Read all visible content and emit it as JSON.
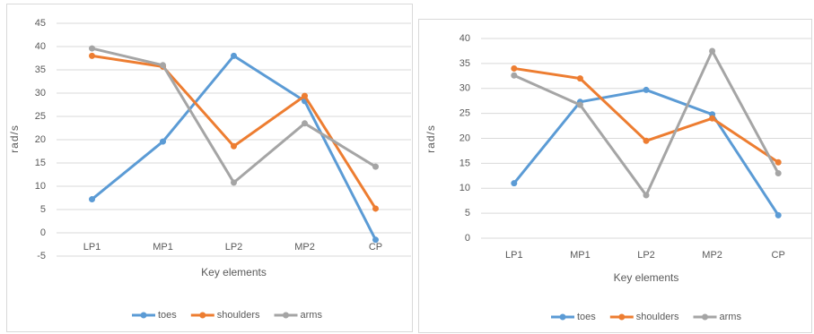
{
  "chart_data": [
    {
      "type": "line",
      "x_label": "Key elements",
      "y_label": "rad/s",
      "categories": [
        "LP1",
        "MP1",
        "LP2",
        "MP2",
        "CP"
      ],
      "series": [
        {
          "name": "toes",
          "color": "#5b9bd5",
          "values": [
            7.2,
            19.6,
            38,
            28.3,
            -1.5
          ]
        },
        {
          "name": "shoulders",
          "color": "#ed7d31",
          "values": [
            38,
            35.7,
            18.6,
            29.4,
            5.2
          ]
        },
        {
          "name": "arms",
          "color": "#a5a5a5",
          "values": [
            39.6,
            36,
            10.8,
            23.5,
            14.2
          ]
        }
      ],
      "ylim": [
        -5,
        45
      ],
      "yticks": [
        -5,
        0,
        5,
        10,
        15,
        20,
        25,
        30,
        35,
        40,
        45
      ],
      "grid": true,
      "legend": "bottom"
    },
    {
      "type": "line",
      "x_label": "Key elements",
      "y_label": "rad/s",
      "categories": [
        "LP1",
        "MP1",
        "LP2",
        "MP2",
        "CP"
      ],
      "series": [
        {
          "name": "toes",
          "color": "#5b9bd5",
          "values": [
            11,
            27.3,
            29.7,
            24.8,
            4.6
          ]
        },
        {
          "name": "shoulders",
          "color": "#ed7d31",
          "values": [
            34,
            32,
            19.5,
            24,
            15.2
          ]
        },
        {
          "name": "arms",
          "color": "#a5a5a5",
          "values": [
            32.6,
            26.7,
            8.6,
            37.5,
            13
          ]
        }
      ],
      "ylim": [
        0,
        40
      ],
      "yticks": [
        0,
        5,
        10,
        15,
        20,
        25,
        30,
        35,
        40
      ],
      "grid": true,
      "legend": "bottom"
    }
  ]
}
